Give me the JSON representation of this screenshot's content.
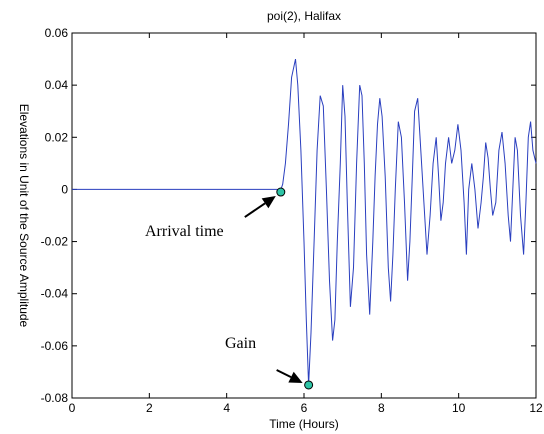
{
  "chart_data": {
    "type": "line",
    "title": "poi(2), Halifax",
    "xlabel": "Time (Hours)",
    "ylabel": "Elevations in Unit of the Source Amplitude",
    "xlim": [
      0,
      12
    ],
    "ylim": [
      -0.08,
      0.06
    ],
    "xticks": [
      0,
      2,
      4,
      6,
      8,
      10,
      12
    ],
    "xtick_labels": [
      "0",
      "2",
      "4",
      "6",
      "8",
      "10",
      "12"
    ],
    "yticks": [
      -0.08,
      -0.06,
      -0.04,
      -0.02,
      0,
      0.02,
      0.04,
      0.06
    ],
    "ytick_labels": [
      "-0.08",
      "-0.06",
      "-0.04",
      "-0.02",
      "0",
      "0.02",
      "0.04",
      "0.06"
    ],
    "grid": false,
    "series": [
      {
        "color": "#2a3fbf",
        "x": [
          0,
          5.0,
          5.3,
          5.38,
          5.45,
          5.52,
          5.6,
          5.68,
          5.78,
          5.84,
          5.92,
          6.0,
          6.06,
          6.12,
          6.18,
          6.26,
          6.34,
          6.42,
          6.5,
          6.58,
          6.66,
          6.74,
          6.8,
          6.86,
          6.94,
          7.0,
          7.06,
          7.12,
          7.2,
          7.28,
          7.36,
          7.44,
          7.5,
          7.56,
          7.62,
          7.7,
          7.78,
          7.84,
          7.9,
          7.96,
          8.02,
          8.1,
          8.18,
          8.24,
          8.3,
          8.36,
          8.44,
          8.52,
          8.6,
          8.68,
          8.74,
          8.8,
          8.86,
          8.94,
          9.02,
          9.1,
          9.18,
          9.26,
          9.34,
          9.42,
          9.48,
          9.54,
          9.6,
          9.66,
          9.74,
          9.82,
          9.9,
          9.98,
          10.06,
          10.14,
          10.2,
          10.26,
          10.34,
          10.42,
          10.5,
          10.58,
          10.64,
          10.7,
          10.76,
          10.82,
          10.88,
          10.96,
          11.04,
          11.12,
          11.2,
          11.28,
          11.34,
          11.4,
          11.46,
          11.52,
          11.6,
          11.68,
          11.74,
          11.8,
          11.86,
          11.92,
          12.0
        ],
        "y": [
          0,
          0,
          0,
          -0.001,
          0.002,
          0.01,
          0.025,
          0.043,
          0.05,
          0.04,
          0.015,
          -0.02,
          -0.05,
          -0.075,
          -0.055,
          -0.02,
          0.015,
          0.036,
          0.032,
          0.0,
          -0.035,
          -0.058,
          -0.05,
          -0.02,
          0.01,
          0.04,
          0.028,
          -0.005,
          -0.045,
          -0.03,
          0.01,
          0.04,
          0.036,
          0.01,
          -0.025,
          -0.048,
          -0.02,
          0.005,
          0.025,
          0.035,
          0.028,
          0.005,
          -0.03,
          -0.043,
          -0.025,
          0.0,
          0.026,
          0.02,
          -0.005,
          -0.035,
          -0.02,
          0.005,
          0.03,
          0.035,
          0.015,
          -0.005,
          -0.025,
          -0.01,
          0.01,
          0.02,
          0.005,
          -0.012,
          -0.005,
          0.01,
          0.02,
          0.01,
          0.015,
          0.025,
          0.015,
          -0.005,
          -0.025,
          0.0,
          0.01,
          0.0,
          -0.015,
          -0.005,
          0.005,
          0.018,
          0.012,
          0.0,
          -0.01,
          -0.005,
          0.015,
          0.022,
          0.01,
          -0.01,
          -0.02,
          0.0,
          0.02,
          0.015,
          -0.01,
          -0.025,
          -0.005,
          0.02,
          0.026,
          0.015,
          0.01
        ]
      }
    ],
    "annotations": [
      {
        "text": "Arrival time",
        "point": [
          5.4,
          -0.001
        ]
      },
      {
        "text": "Gain",
        "point": [
          6.12,
          -0.075
        ]
      }
    ],
    "marker_color": "#2ec4a6"
  }
}
